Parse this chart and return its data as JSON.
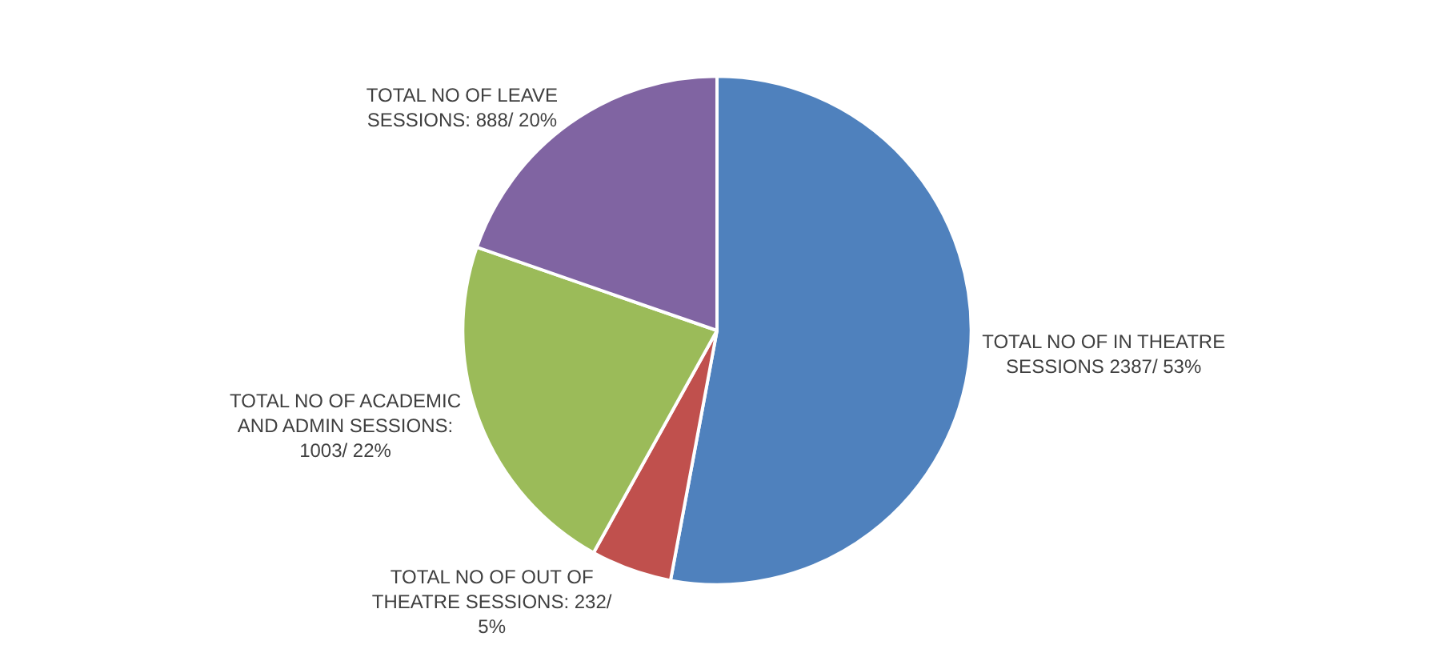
{
  "chart_data": {
    "type": "pie",
    "categories": [
      "TOTAL NO OF IN THEATRE SESSIONS",
      "TOTAL NO OF OUT OF THEATRE SESSIONS",
      "TOTAL NO OF ACADEMIC AND ADMIN SESSIONS",
      "TOTAL NO OF LEAVE SESSIONS"
    ],
    "values": [
      2387,
      232,
      1003,
      888
    ],
    "value_labels": [
      "2387/ 53%",
      ": 232/ 5%",
      ": 1003/ 22%",
      ": 888/ 20%"
    ],
    "colors": [
      "#4f81bd",
      "#c0504d",
      "#9bbb59",
      "#8064a2"
    ],
    "legend": false
  }
}
